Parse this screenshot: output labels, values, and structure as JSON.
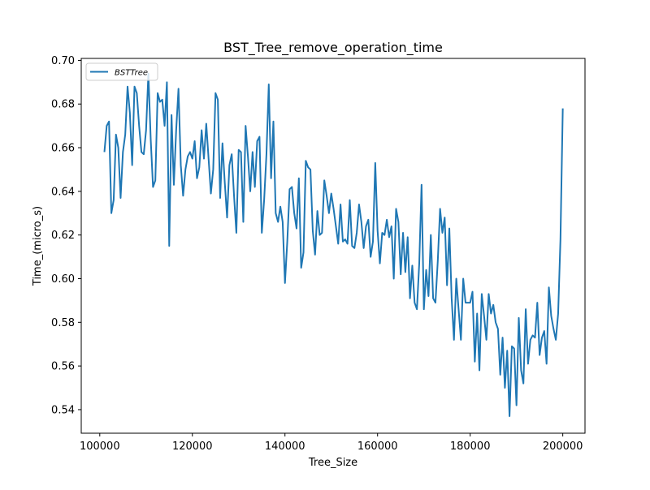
{
  "chart_data": {
    "type": "line",
    "title": "BST_Tree_remove_operation_time",
    "xlabel": "Tree_Size",
    "ylabel": "Time_(micro_s)",
    "xlim": [
      96000,
      204800
    ],
    "ylim": [
      0.5292,
      0.7009
    ],
    "x_ticks": [
      100000,
      120000,
      140000,
      160000,
      180000,
      200000
    ],
    "x_tick_labels": [
      "100000",
      "120000",
      "140000",
      "160000",
      "180000",
      "200000"
    ],
    "y_ticks": [
      0.54,
      0.56,
      0.58,
      0.6,
      0.62,
      0.64,
      0.66,
      0.68,
      0.7
    ],
    "y_tick_labels": [
      "0.54",
      "0.56",
      "0.58",
      "0.60",
      "0.62",
      "0.64",
      "0.66",
      "0.68",
      "0.70"
    ],
    "grid": false,
    "legend_position": "upper left",
    "series": [
      {
        "name": "BSTTree",
        "color": "#1f77b4",
        "x": [
          101000,
          101500,
          102000,
          102500,
          103000,
          103500,
          104000,
          104500,
          105000,
          105500,
          106000,
          106500,
          107000,
          107500,
          108000,
          108500,
          109000,
          109500,
          110000,
          110500,
          111000,
          111500,
          112000,
          112500,
          113000,
          113500,
          114000,
          114500,
          115000,
          115500,
          116000,
          116500,
          117000,
          117500,
          118000,
          118500,
          119000,
          119500,
          120000,
          120500,
          121000,
          121500,
          122000,
          122500,
          123000,
          123500,
          124000,
          124500,
          125000,
          125500,
          126000,
          126500,
          127000,
          127500,
          128000,
          128500,
          129000,
          129500,
          130000,
          130500,
          131000,
          131500,
          132000,
          132500,
          133000,
          133500,
          134000,
          134500,
          135000,
          135500,
          136000,
          136500,
          137000,
          137500,
          138000,
          138500,
          139000,
          139500,
          140000,
          140500,
          141000,
          141500,
          142000,
          142500,
          143000,
          143500,
          144000,
          144500,
          145000,
          145500,
          146000,
          146500,
          147000,
          147500,
          148000,
          148500,
          149000,
          149500,
          150000,
          150500,
          151000,
          151500,
          152000,
          152500,
          153000,
          153500,
          154000,
          154500,
          155000,
          155500,
          156000,
          156500,
          157000,
          157500,
          158000,
          158500,
          159000,
          159500,
          160000,
          160500,
          161000,
          161500,
          162000,
          162500,
          163000,
          163500,
          164000,
          164500,
          165000,
          165500,
          166000,
          166500,
          167000,
          167500,
          168000,
          168500,
          169000,
          169500,
          170000,
          170500,
          171000,
          171500,
          172000,
          172500,
          173000,
          173500,
          174000,
          174500,
          175000,
          175500,
          176000,
          176500,
          177000,
          177500,
          178000,
          178500,
          179000,
          179500,
          180000,
          180500,
          181000,
          181500,
          182000,
          182500,
          183000,
          183500,
          184000,
          184500,
          185000,
          185500,
          186000,
          186500,
          187000,
          187500,
          188000,
          188500,
          189000,
          189500,
          190000,
          190500,
          191000,
          191500,
          192000,
          192500,
          193000,
          193500,
          194000,
          194500,
          195000,
          195500,
          196000,
          196500,
          197000,
          197500,
          198000,
          198500,
          199000,
          199500,
          200000
        ],
        "values": [
          0.658,
          0.67,
          0.672,
          0.63,
          0.636,
          0.666,
          0.66,
          0.637,
          0.658,
          0.666,
          0.688,
          0.676,
          0.652,
          0.688,
          0.685,
          0.67,
          0.658,
          0.657,
          0.668,
          0.694,
          0.664,
          0.642,
          0.645,
          0.685,
          0.681,
          0.682,
          0.67,
          0.69,
          0.615,
          0.675,
          0.643,
          0.668,
          0.687,
          0.652,
          0.638,
          0.65,
          0.656,
          0.658,
          0.655,
          0.663,
          0.646,
          0.651,
          0.668,
          0.655,
          0.671,
          0.655,
          0.639,
          0.65,
          0.685,
          0.682,
          0.637,
          0.662,
          0.644,
          0.628,
          0.652,
          0.657,
          0.638,
          0.621,
          0.659,
          0.658,
          0.626,
          0.67,
          0.656,
          0.64,
          0.658,
          0.642,
          0.663,
          0.665,
          0.621,
          0.636,
          0.657,
          0.689,
          0.646,
          0.672,
          0.63,
          0.626,
          0.633,
          0.626,
          0.598,
          0.617,
          0.641,
          0.642,
          0.63,
          0.623,
          0.646,
          0.605,
          0.612,
          0.654,
          0.651,
          0.65,
          0.622,
          0.611,
          0.631,
          0.62,
          0.621,
          0.645,
          0.638,
          0.63,
          0.639,
          0.632,
          0.624,
          0.616,
          0.634,
          0.617,
          0.618,
          0.616,
          0.636,
          0.615,
          0.614,
          0.621,
          0.634,
          0.626,
          0.614,
          0.624,
          0.627,
          0.61,
          0.617,
          0.653,
          0.622,
          0.607,
          0.621,
          0.62,
          0.627,
          0.619,
          0.624,
          0.6,
          0.632,
          0.626,
          0.602,
          0.621,
          0.603,
          0.619,
          0.591,
          0.606,
          0.589,
          0.586,
          0.607,
          0.643,
          0.586,
          0.604,
          0.592,
          0.62,
          0.591,
          0.589,
          0.608,
          0.632,
          0.621,
          0.628,
          0.597,
          0.623,
          0.591,
          0.572,
          0.6,
          0.586,
          0.572,
          0.6,
          0.589,
          0.589,
          0.589,
          0.594,
          0.562,
          0.584,
          0.558,
          0.593,
          0.583,
          0.572,
          0.593,
          0.584,
          0.588,
          0.58,
          0.577,
          0.556,
          0.573,
          0.55,
          0.567,
          0.537,
          0.569,
          0.568,
          0.542,
          0.582,
          0.558,
          0.552,
          0.586,
          0.561,
          0.572,
          0.574,
          0.573,
          0.589,
          0.565,
          0.573,
          0.576,
          0.561,
          0.596,
          0.583,
          0.577,
          0.572,
          0.584,
          0.618,
          0.678
        ]
      }
    ]
  }
}
